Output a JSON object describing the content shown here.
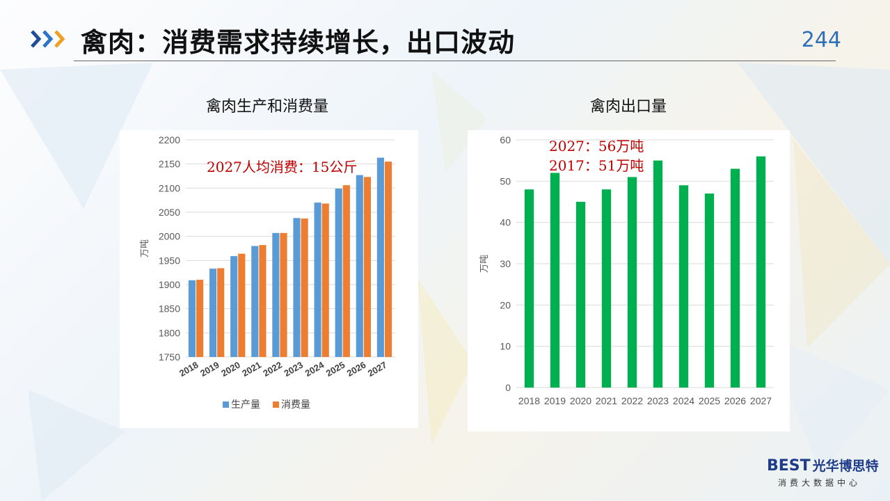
{
  "header": {
    "title": "禽肉：消费需求持续增长，出口波动",
    "page_number": "244"
  },
  "logo": {
    "mark": "BEST",
    "name": "光华博思特",
    "tagline": "消费大数据中心"
  },
  "colors": {
    "production": "#5b9bd5",
    "consumption": "#ed7d31",
    "export": "#00b050",
    "annotation": "#c00000"
  },
  "chart_data": [
    {
      "type": "bar",
      "title": "禽肉生产和消费量",
      "ylabel": "万吨",
      "xlabel": "",
      "ylim": [
        1750,
        2200
      ],
      "yticks": [
        1750,
        1800,
        1850,
        1900,
        1950,
        2000,
        2050,
        2100,
        2150,
        2200
      ],
      "grid": true,
      "legend": "bottom",
      "categories": [
        "2018",
        "2019",
        "2020",
        "2021",
        "2022",
        "2023",
        "2024",
        "2025",
        "2026",
        "2027"
      ],
      "series": [
        {
          "name": "生产量",
          "values": [
            1909,
            1933,
            1959,
            1980,
            2007,
            2038,
            2070,
            2099,
            2127,
            2163
          ]
        },
        {
          "name": "消费量",
          "values": [
            1910,
            1934,
            1964,
            1982,
            2007,
            2037,
            2068,
            2106,
            2123,
            2155
          ]
        }
      ],
      "annotations": [
        "2027人均消费：15公斤"
      ]
    },
    {
      "type": "bar",
      "title": "禽肉出口量",
      "ylabel": "万吨",
      "xlabel": "",
      "ylim": [
        0,
        60
      ],
      "yticks": [
        0,
        10,
        20,
        30,
        40,
        50,
        60
      ],
      "grid": true,
      "categories": [
        "2018",
        "2019",
        "2020",
        "2021",
        "2022",
        "2023",
        "2024",
        "2025",
        "2026",
        "2027"
      ],
      "series": [
        {
          "name": "",
          "values": [
            48,
            52,
            45,
            48,
            51,
            55,
            49,
            47,
            53,
            56
          ]
        }
      ],
      "annotations": [
        "2027：56万吨",
        "2017：51万吨"
      ]
    }
  ]
}
